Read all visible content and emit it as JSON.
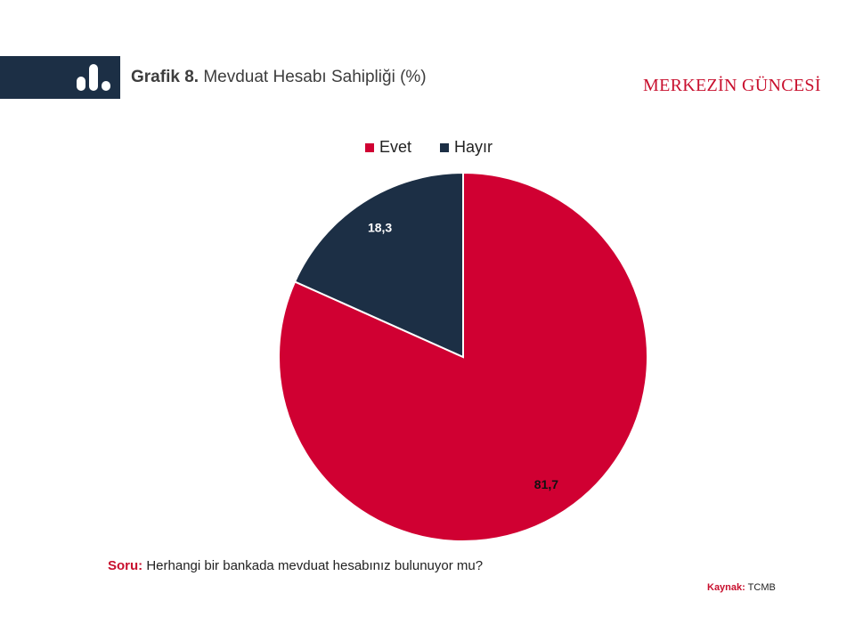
{
  "header": {
    "title_number": "Grafik 8.",
    "title_text": "Mevduat Hesabı Sahipliği (%)",
    "brand": "MERKEZİN GÜNCESİ",
    "icon": "bar-chart-icon"
  },
  "chart_data": {
    "type": "pie",
    "categories": [
      "Evet",
      "Hayır"
    ],
    "values": [
      81.7,
      18.3
    ],
    "value_labels": [
      "81,7",
      "18,3"
    ],
    "colors": [
      "#d00032",
      "#1c2f45"
    ],
    "label_colors": [
      "#111111",
      "#ffffff"
    ],
    "legend": {
      "placement": "top-center",
      "entries": [
        "Evet",
        "Hayır"
      ]
    },
    "title": ""
  },
  "footer": {
    "question_label": "Soru:",
    "question_text": "Herhangi bir bankada mevduat hesabınız bulunuyor mu?",
    "source_label": "Kaynak:",
    "source_text": "TCMB"
  }
}
